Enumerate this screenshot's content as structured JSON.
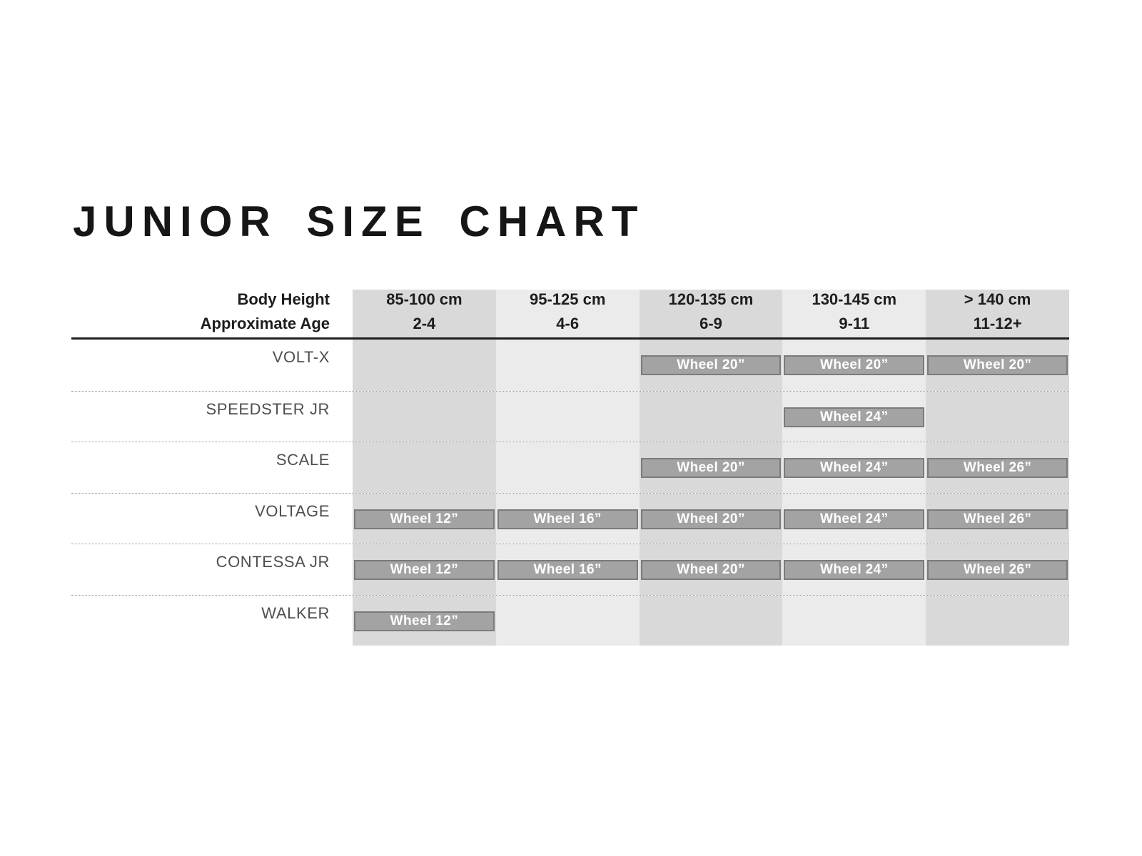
{
  "title": "JUNIOR SIZE CHART",
  "colors": {
    "column_shade_dark": "#d9d9d9",
    "column_shade_light": "#ebebeb",
    "bar_fill": "#a3a3a3",
    "bar_border": "#7b7b7b",
    "bar_text": "#ffffff",
    "header_text": "#1d1d1d",
    "model_label_text": "#4e4e4e",
    "header_rule": "#1f1f1f",
    "row_separator_dotted": "#9a9a9a"
  },
  "chart_data": {
    "type": "table",
    "title": "JUNIOR SIZE CHART",
    "header_left": {
      "line1": "Body Height",
      "line2": "Approximate Age"
    },
    "columns": [
      {
        "height": "85-100 cm",
        "age": "2-4"
      },
      {
        "height": "95-125 cm",
        "age": "4-6"
      },
      {
        "height": "120-135 cm",
        "age": "6-9"
      },
      {
        "height": "130-145 cm",
        "age": "9-11"
      },
      {
        "height": "> 140 cm",
        "age": "11-12+"
      }
    ],
    "rows": [
      {
        "model": "VOLT-X",
        "wheels_by_column": [
          null,
          null,
          "Wheel 20”",
          "Wheel 20”",
          "Wheel 20”"
        ]
      },
      {
        "model": "SPEEDSTER JR",
        "wheels_by_column": [
          null,
          null,
          null,
          "Wheel 24”",
          null
        ]
      },
      {
        "model": "SCALE",
        "wheels_by_column": [
          null,
          null,
          "Wheel 20”",
          "Wheel 24”",
          "Wheel 26”"
        ]
      },
      {
        "model": "VOLTAGE",
        "wheels_by_column": [
          "Wheel 12”",
          "Wheel 16”",
          "Wheel 20”",
          "Wheel 24”",
          "Wheel 26”"
        ]
      },
      {
        "model": "CONTESSA JR",
        "wheels_by_column": [
          "Wheel 12”",
          "Wheel 16”",
          "Wheel 20”",
          "Wheel 24”",
          "Wheel 26”"
        ]
      },
      {
        "model": "WALKER",
        "wheels_by_column": [
          "Wheel 12”",
          null,
          null,
          null,
          null
        ]
      }
    ],
    "layout": {
      "alternating_column_shading": true,
      "legend": "none",
      "grid": "dotted row separators, solid rule under header"
    }
  }
}
